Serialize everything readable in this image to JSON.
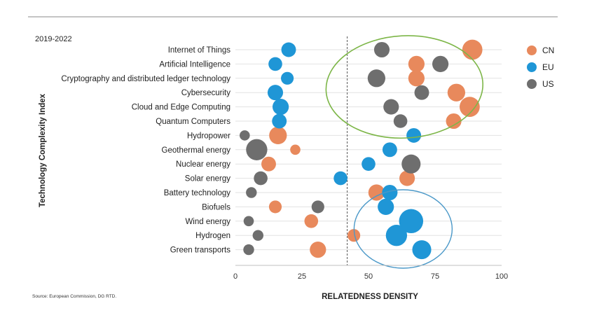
{
  "chart_data": {
    "type": "scatter",
    "subtype": "bubble",
    "period": "2019-2022",
    "ylabel": "Technology Complexity Index",
    "xlabel": "RELATEDNESS DENSITY",
    "xlim": [
      0,
      100
    ],
    "xticks": [
      0,
      25,
      50,
      75,
      100
    ],
    "reference_line_x": 42,
    "source": "Source: European Commission, DG RTD.",
    "categories": [
      "Internet of Things",
      "Artificial Intelligence",
      "Cryptography and distributed ledger technology",
      "Cybersecurity",
      "Cloud and Edge Computing",
      "Quantum Computers",
      "Hydropower",
      "Geothermal energy",
      "Nuclear energy",
      "Solar energy",
      "Battery technology",
      "Biofuels",
      "Wind energy",
      "Hydrogen",
      "Green transports"
    ],
    "series": [
      {
        "name": "CN",
        "color": "#E8895C",
        "points": [
          {
            "x": 89,
            "size": 7
          },
          {
            "x": 68,
            "size": 4
          },
          {
            "x": 68,
            "size": 4
          },
          {
            "x": 83,
            "size": 5
          },
          {
            "x": 88,
            "size": 7
          },
          {
            "x": 82,
            "size": 3.5
          },
          {
            "x": 16,
            "size": 5
          },
          {
            "x": 22.5,
            "size": 1
          },
          {
            "x": 12.5,
            "size": 3
          },
          {
            "x": 64.5,
            "size": 3.5
          },
          {
            "x": 53,
            "size": 4
          },
          {
            "x": 15,
            "size": 2
          },
          {
            "x": 28.5,
            "size": 2.5
          },
          {
            "x": 44.5,
            "size": 2
          },
          {
            "x": 31,
            "size": 4
          }
        ]
      },
      {
        "name": "EU",
        "color": "#1F96D6",
        "points": [
          {
            "x": 20,
            "size": 3
          },
          {
            "x": 15,
            "size": 2.5
          },
          {
            "x": 19.5,
            "size": 2
          },
          {
            "x": 15,
            "size": 3.5
          },
          {
            "x": 17,
            "size": 4
          },
          {
            "x": 16.5,
            "size": 3
          },
          {
            "x": 67,
            "size": 3
          },
          {
            "x": 58,
            "size": 3
          },
          {
            "x": 50,
            "size": 2.5
          },
          {
            "x": 39.5,
            "size": 2.5
          },
          {
            "x": 58,
            "size": 3.5
          },
          {
            "x": 56.5,
            "size": 4
          },
          {
            "x": 66,
            "size": 11
          },
          {
            "x": 60.5,
            "size": 8
          },
          {
            "x": 70,
            "size": 6
          }
        ]
      },
      {
        "name": "US",
        "color": "#6E6E6E",
        "points": [
          {
            "x": 55,
            "size": 3.5
          },
          {
            "x": 77,
            "size": 4
          },
          {
            "x": 53,
            "size": 5
          },
          {
            "x": 70,
            "size": 3
          },
          {
            "x": 58.5,
            "size": 3.5
          },
          {
            "x": 62,
            "size": 2.5
          },
          {
            "x": 3.5,
            "size": 1
          },
          {
            "x": 8,
            "size": 8
          },
          {
            "x": 66,
            "size": 6
          },
          {
            "x": 9.5,
            "size": 2.5
          },
          {
            "x": 6,
            "size": 1.2
          },
          {
            "x": 31,
            "size": 2
          },
          {
            "x": 5,
            "size": 1
          },
          {
            "x": 8.5,
            "size": 1.2
          },
          {
            "x": 5,
            "size": 1.2
          }
        ]
      }
    ],
    "annotations": [
      {
        "shape": "ellipse",
        "color": "#7DB648",
        "encloses": "digital technologies cluster (upper right)"
      },
      {
        "shape": "ellipse",
        "color": "#4A98C8",
        "encloses": "green energy cluster (lower right)"
      }
    ]
  }
}
